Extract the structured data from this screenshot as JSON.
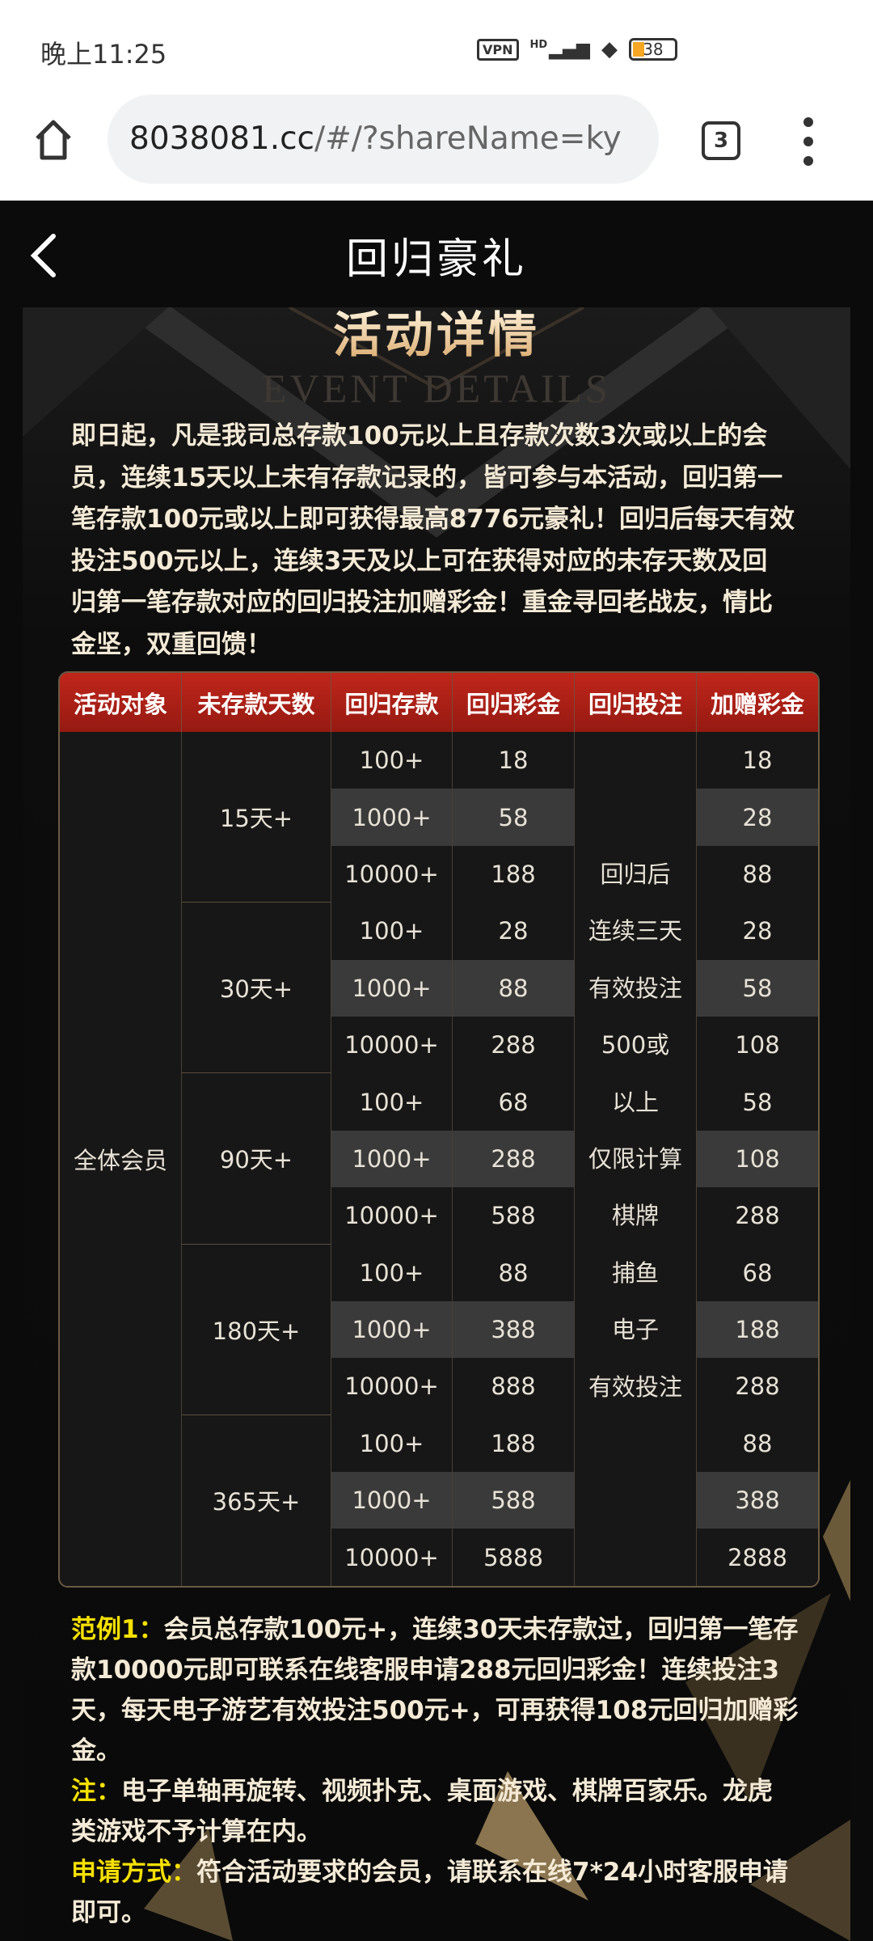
{
  "status_bar": {
    "time": "晚上11:25",
    "vpn": "VPN",
    "signal": "HD",
    "battery": "38"
  },
  "browser": {
    "url_host": "8038081.cc",
    "url_rest": "/#/?shareName=ky",
    "tab_count": "3"
  },
  "app_bar": {
    "title": "回归豪礼"
  },
  "page": {
    "title": "活动详情",
    "watermark": "EVENT DETAILS",
    "intro_lines": [
      "即日起，凡是我司总存款100元以上且存款次数3次或以上的会",
      "员，连续15天以上未有存款记录的，皆可参与本活动，回归第一",
      "笔存款100元或以上即可获得最高8776元豪礼！回归后每天有效",
      "投注500元以上，连续3天及以上可在获得对应的未存天数及回",
      "归第一笔存款对应的回归投注加赠彩金！重金寻回老战友，情比",
      "金坚，双重回馈！"
    ]
  },
  "table": {
    "headers": [
      "活动对象",
      "未存款天数",
      "回归存款",
      "回归彩金",
      "回归投注",
      "加赠彩金"
    ],
    "target": "全体会员",
    "bet_lines": [
      "回归后",
      "连续三天",
      "有效投注",
      "500或",
      "以上",
      "仅限计算",
      "棋牌",
      "捕鱼",
      "电子",
      "有效投注"
    ],
    "groups": [
      {
        "days": "15天+",
        "rows": [
          {
            "deposit": "100+",
            "bonus": "18",
            "extra": "18"
          },
          {
            "deposit": "1000+",
            "bonus": "58",
            "extra": "28"
          },
          {
            "deposit": "10000+",
            "bonus": "188",
            "extra": "88"
          }
        ]
      },
      {
        "days": "30天+",
        "rows": [
          {
            "deposit": "100+",
            "bonus": "28",
            "extra": "28"
          },
          {
            "deposit": "1000+",
            "bonus": "88",
            "extra": "58"
          },
          {
            "deposit": "10000+",
            "bonus": "288",
            "extra": "108"
          }
        ]
      },
      {
        "days": "90天+",
        "rows": [
          {
            "deposit": "100+",
            "bonus": "68",
            "extra": "58"
          },
          {
            "deposit": "1000+",
            "bonus": "288",
            "extra": "108"
          },
          {
            "deposit": "10000+",
            "bonus": "588",
            "extra": "288"
          }
        ]
      },
      {
        "days": "180天+",
        "rows": [
          {
            "deposit": "100+",
            "bonus": "88",
            "extra": "68"
          },
          {
            "deposit": "1000+",
            "bonus": "388",
            "extra": "188"
          },
          {
            "deposit": "10000+",
            "bonus": "888",
            "extra": "288"
          }
        ]
      },
      {
        "days": "365天+",
        "rows": [
          {
            "deposit": "100+",
            "bonus": "188",
            "extra": "88"
          },
          {
            "deposit": "1000+",
            "bonus": "588",
            "extra": "388"
          },
          {
            "deposit": "10000+",
            "bonus": "5888",
            "extra": "2888"
          }
        ]
      }
    ]
  },
  "notes": [
    {
      "label": "范例1：",
      "lines": [
        "会员总存款100元+，连续30天未存款过，回归第一笔存",
        "款10000元即可联系在线客服申请288元回归彩金！连续投注3",
        "天，每天电子游艺有效投注500元+，可再获得108元回归加赠彩",
        "金。"
      ]
    },
    {
      "label": "注：",
      "lines": [
        "电子单轴再旋转、视频扑克、桌面游戏、棋牌百家乐。龙虎",
        "类游戏不予计算在内。"
      ]
    },
    {
      "label": "申请方式：",
      "lines": [
        "符合活动要求的会员，请联系在线7*24小时客服申请",
        "即可。"
      ]
    }
  ],
  "colors": {
    "header_red": "#b3221a",
    "note_label_yellow": "#f6e000",
    "title_gold": "#e8c48e"
  }
}
